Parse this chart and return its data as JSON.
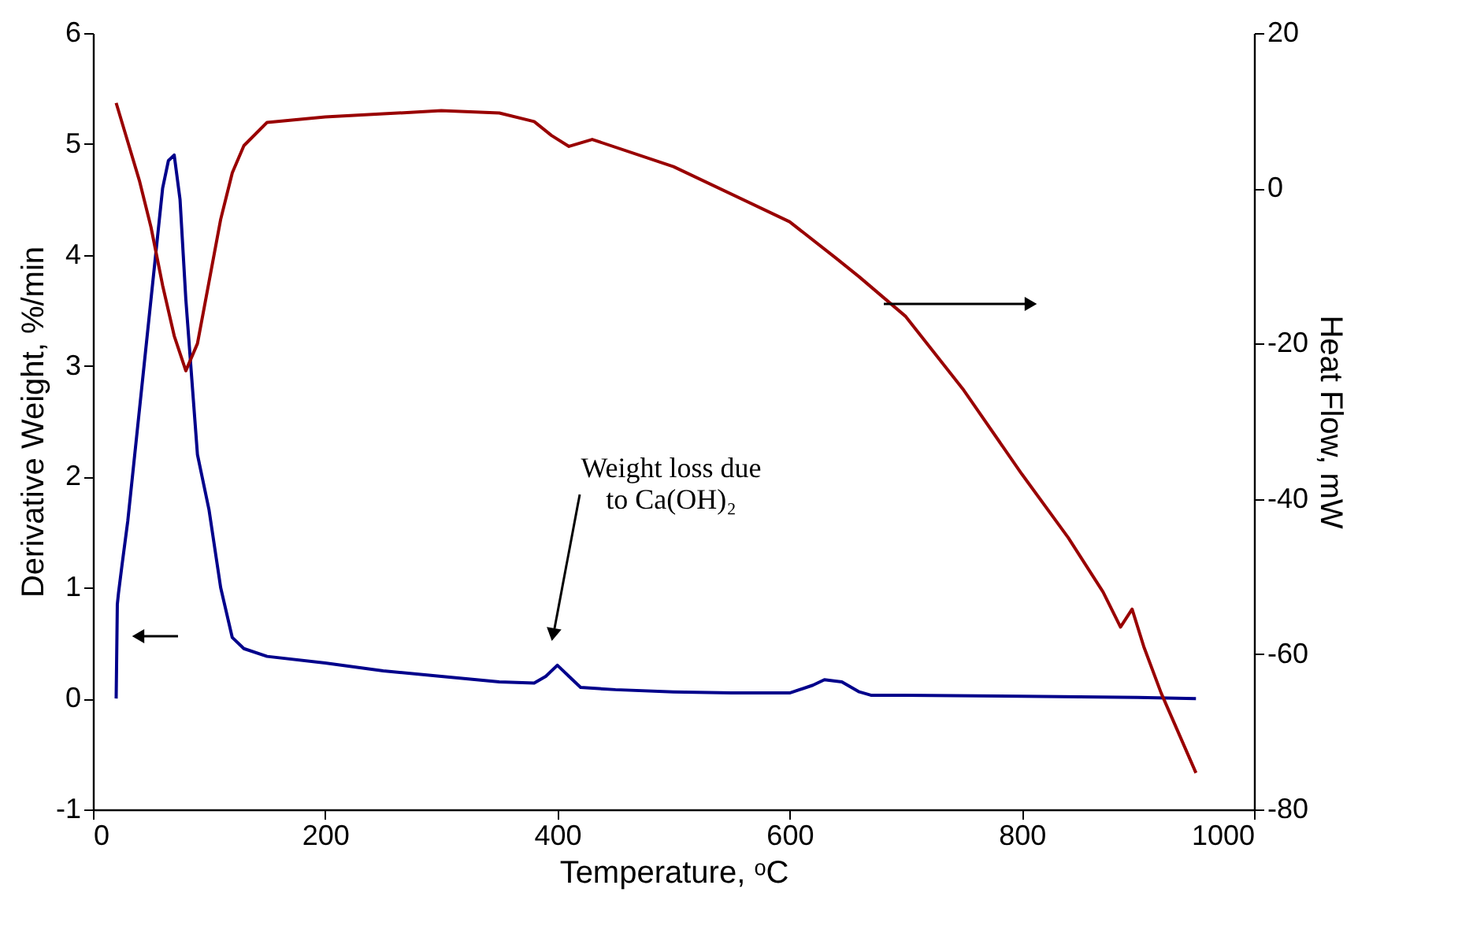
{
  "chart_data": {
    "type": "line",
    "xlabel": "Temperature, ᵒC",
    "ylabel": "Derivative Weight, %/min",
    "y2label": "Heat Flow, mW",
    "xlim": [
      0,
      1000
    ],
    "xticks": [
      0,
      200,
      400,
      600,
      800,
      1000
    ],
    "ylim": [
      -1,
      6
    ],
    "yticks": [
      -1,
      0,
      1,
      2,
      3,
      4,
      5,
      6
    ],
    "y2lim": [
      -80,
      20
    ],
    "y2ticks": [
      -80,
      -60,
      -40,
      -20,
      0,
      20
    ],
    "grid": false,
    "legend": false,
    "marker": "none",
    "line_style": "solid",
    "series": [
      {
        "color": "#00008b",
        "x": [
          20,
          21,
          22,
          25,
          30,
          40,
          50,
          60,
          65,
          70,
          75,
          80,
          90,
          100,
          110,
          120,
          130,
          150,
          200,
          250,
          300,
          350,
          380,
          390,
          400,
          410,
          420,
          450,
          500,
          550,
          600,
          620,
          630,
          645,
          660,
          670,
          700,
          800,
          900,
          950
        ],
        "values": [
          0,
          0.85,
          0.95,
          1.2,
          1.6,
          2.6,
          3.6,
          4.6,
          4.85,
          4.9,
          4.5,
          3.6,
          2.2,
          1.7,
          1.0,
          0.55,
          0.45,
          0.38,
          0.32,
          0.25,
          0.2,
          0.15,
          0.14,
          0.2,
          0.3,
          0.2,
          0.1,
          0.08,
          0.06,
          0.05,
          0.05,
          0.12,
          0.17,
          0.15,
          0.06,
          0.03,
          0.03,
          0.02,
          0.01,
          0.0
        ]
      },
      {
        "color": "#990000",
        "axis": "y2",
        "x": [
          20,
          30,
          40,
          50,
          60,
          70,
          80,
          90,
          100,
          110,
          120,
          130,
          150,
          200,
          250,
          300,
          350,
          380,
          395,
          410,
          430,
          500,
          600,
          640,
          660,
          700,
          750,
          800,
          840,
          870,
          885,
          895,
          905,
          920,
          950
        ],
        "values": [
          11,
          6,
          1,
          -5,
          -12.5,
          -19,
          -23.5,
          -20,
          -12,
          -4,
          2,
          5.5,
          8.5,
          9.2,
          9.6,
          10,
          9.7,
          8.6,
          6.8,
          5.4,
          6.3,
          2.8,
          -4.3,
          -9,
          -11.4,
          -16.5,
          -26,
          -36.8,
          -45,
          -52,
          -56.5,
          -54.2,
          -59,
          -65,
          -75.3
        ]
      }
    ],
    "annotations": [
      "Weight loss due\nto Ca(OH)₂"
    ]
  }
}
